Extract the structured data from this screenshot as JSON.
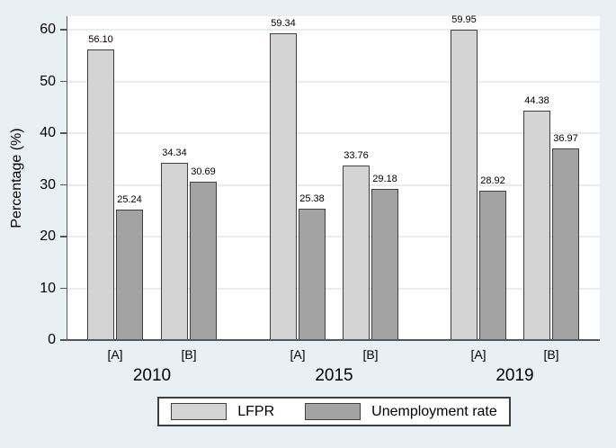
{
  "chart_data": {
    "type": "bar",
    "title": "",
    "xlabel": "",
    "ylabel": "Percentage (%)",
    "ylim": [
      0,
      60
    ],
    "yticks": [
      0,
      10,
      20,
      30,
      40,
      50,
      60
    ],
    "grid": true,
    "legend_position": "bottom-center",
    "categories": [
      "2010 [A]",
      "2010 [B]",
      "2015 [A]",
      "2015 [B]",
      "2019 [A]",
      "2019 [B]"
    ],
    "group_labels": [
      "[A]",
      "[B]",
      "[A]",
      "[B]",
      "[A]",
      "[B]"
    ],
    "years": [
      "2010",
      "2015",
      "2019"
    ],
    "series": [
      {
        "name": "LFPR",
        "color": "#d4d4d4",
        "values": [
          56.1,
          34.34,
          59.34,
          33.76,
          59.95,
          44.38
        ],
        "labels": [
          "56.10",
          "34.34",
          "59.34",
          "33.76",
          "59.95",
          "44.38"
        ]
      },
      {
        "name": "Unemployment rate",
        "color": "#a3a3a3",
        "values": [
          25.24,
          30.69,
          25.38,
          29.18,
          28.92,
          36.97
        ],
        "labels": [
          "25.24",
          "30.69",
          "25.38",
          "29.18",
          "28.92",
          "36.97"
        ]
      }
    ]
  },
  "colors": {
    "figure_background": "#e9f0f4",
    "plot_background": "#ffffff",
    "gridline": "#e3edf2",
    "axis": "#575757",
    "bar_border": "#3f3f3f",
    "text": "#000000",
    "legend_border": "#3f3f3f",
    "legend_background": "#ffffff"
  }
}
